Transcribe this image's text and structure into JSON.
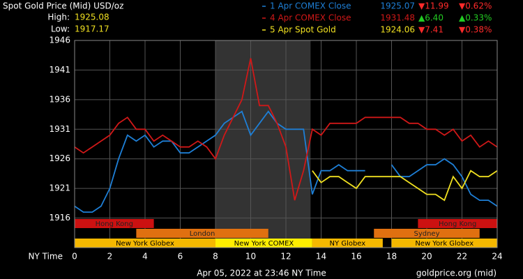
{
  "chart_data": {
    "type": "line",
    "title": "Spot Gold Price (Mid) USD/oz",
    "high_label": "High:",
    "high": "1925.08",
    "low_label": "Low:",
    "low": "1917.17",
    "xlabel": "NY Time",
    "footer": "Apr 05, 2022 at 23:46 NY Time",
    "source": "goldprice.org (mid)",
    "xlim": [
      0,
      24
    ],
    "xticks": [
      0,
      2,
      4,
      6,
      8,
      10,
      12,
      14,
      16,
      18,
      20,
      22,
      24
    ],
    "ylim": [
      1911,
      1946
    ],
    "yticks": [
      1916,
      1921,
      1926,
      1931,
      1936,
      1941,
      1946
    ],
    "grid": true,
    "shade": [
      8,
      13.4
    ],
    "x": [
      0,
      0.5,
      1,
      1.5,
      2,
      2.5,
      3,
      3.5,
      4,
      4.5,
      5,
      5.5,
      6,
      6.5,
      7,
      7.5,
      8,
      8.5,
      9,
      9.5,
      10,
      10.5,
      11,
      11.5,
      12,
      12.5,
      13,
      13.5,
      14,
      14.5,
      15,
      15.5,
      16,
      16.5,
      17,
      17.5,
      18,
      18.5,
      19,
      19.5,
      20,
      20.5,
      21,
      21.5,
      22,
      22.5,
      23,
      23.5,
      24
    ],
    "series": [
      {
        "name": "1 Apr COMEX Close",
        "color": "#1e7fd6",
        "close": "1925.07",
        "change": "▼11.99",
        "change_pct": "▼0.62%",
        "change_color": "#ff2a2a",
        "change_pct_color": "#ff2a2a",
        "values": [
          1918,
          1917,
          1917,
          1918,
          1921,
          1926,
          1930,
          1929,
          1930,
          1928,
          1929,
          1929,
          1927,
          1927,
          1928,
          1929,
          1930,
          1932,
          1933,
          1934,
          1930,
          1932,
          1934,
          1932,
          1931,
          1931,
          1931,
          1920,
          1924,
          1924,
          1925,
          1924,
          1924,
          1924,
          null,
          null,
          1925,
          1923,
          1923,
          1924,
          1925,
          1925,
          1926,
          1925,
          1923,
          1920,
          1919,
          1919,
          1918
        ]
      },
      {
        "name": "4 Apr COMEX Close",
        "color": "#d01818",
        "close": "1931.48",
        "change": "▲6.40",
        "change_pct": "▲0.33%",
        "change_color": "#22cc22",
        "change_pct_color": "#22cc22",
        "values": [
          1928,
          1927,
          1928,
          1929,
          1930,
          1932,
          1933,
          1931,
          1931,
          1929,
          1930,
          1929,
          1928,
          1928,
          1929,
          1928,
          1926,
          1930,
          1933,
          1936,
          1943,
          1935,
          1935,
          1932,
          1928,
          1919,
          1924,
          1931,
          1930,
          1932,
          1932,
          1932,
          1932,
          1933,
          1933,
          1933,
          1933,
          1933,
          1932,
          1932,
          1931,
          1931,
          1930,
          1931,
          1929,
          1930,
          1928,
          1929,
          1928
        ]
      },
      {
        "name": "5 Apr Spot Gold",
        "color": "#f0e020",
        "close": "1924.06",
        "change": "▼7.41",
        "change_pct": "▼0.38%",
        "change_color": "#ff2a2a",
        "change_pct_color": "#ff2a2a",
        "values": [
          null,
          null,
          null,
          null,
          null,
          null,
          null,
          null,
          null,
          null,
          null,
          null,
          null,
          null,
          null,
          null,
          null,
          null,
          null,
          null,
          null,
          null,
          null,
          null,
          null,
          null,
          null,
          1924,
          1922,
          1923,
          1923,
          1922,
          1921,
          1923,
          1923,
          1923,
          1923,
          1923,
          1922,
          1921,
          1920,
          1920,
          1919,
          1923,
          1921,
          1924,
          1923,
          1923,
          1924
        ]
      }
    ],
    "sessions": [
      {
        "name": "Hong Kong",
        "start": 0,
        "end": 4.5,
        "row": 0,
        "color": "#cc1111"
      },
      {
        "name": "Hong Kong",
        "start": 19.5,
        "end": 24,
        "row": 0,
        "color": "#cc1111"
      },
      {
        "name": "London",
        "start": 3.5,
        "end": 11,
        "row": 1,
        "color": "#e07010"
      },
      {
        "name": "Sydney",
        "start": 17,
        "end": 23,
        "row": 1,
        "color": "#e07010"
      },
      {
        "name": "New York Globex",
        "start": 0,
        "end": 8,
        "row": 2,
        "color": "#f5b800"
      },
      {
        "name": "New York COMEX",
        "start": 8,
        "end": 13.5,
        "row": 2,
        "color": "#ffee00"
      },
      {
        "name": "NY Globex",
        "start": 13.5,
        "end": 17.5,
        "row": 2,
        "color": "#f5b800"
      },
      {
        "name": "New York Globex",
        "start": 18,
        "end": 24,
        "row": 2,
        "color": "#f5b800"
      }
    ]
  }
}
